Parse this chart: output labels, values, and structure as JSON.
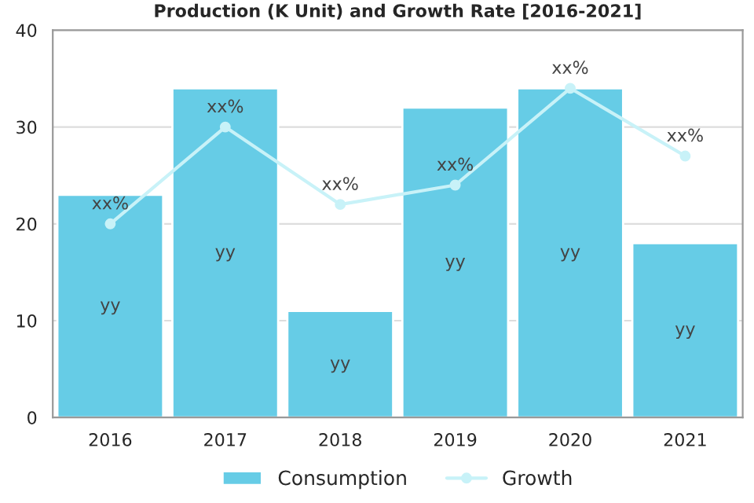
{
  "chart_data": {
    "type": "bar",
    "title": "Production (K Unit) and Growth Rate [2016-2021]",
    "categories": [
      "2016",
      "2017",
      "2018",
      "2019",
      "2020",
      "2021"
    ],
    "series": [
      {
        "name": "Consumption",
        "color": "#66cce6",
        "values": [
          23,
          34,
          11,
          32,
          34,
          18
        ],
        "value_labels": [
          "yy",
          "yy",
          "yy",
          "yy",
          "yy",
          "yy"
        ]
      },
      {
        "name": "Growth",
        "type": "line",
        "color": "#c8f2f8",
        "marker": "circle",
        "values": [
          20,
          30,
          22,
          24,
          34,
          27
        ],
        "value_labels": [
          "xx%",
          "xx%",
          "xx%",
          "xx%",
          "xx%",
          "xx%"
        ]
      }
    ],
    "ylim": [
      0,
      40
    ],
    "yticks": [
      0,
      10,
      20,
      30,
      40
    ],
    "grid": "y",
    "legend": "bottom"
  }
}
